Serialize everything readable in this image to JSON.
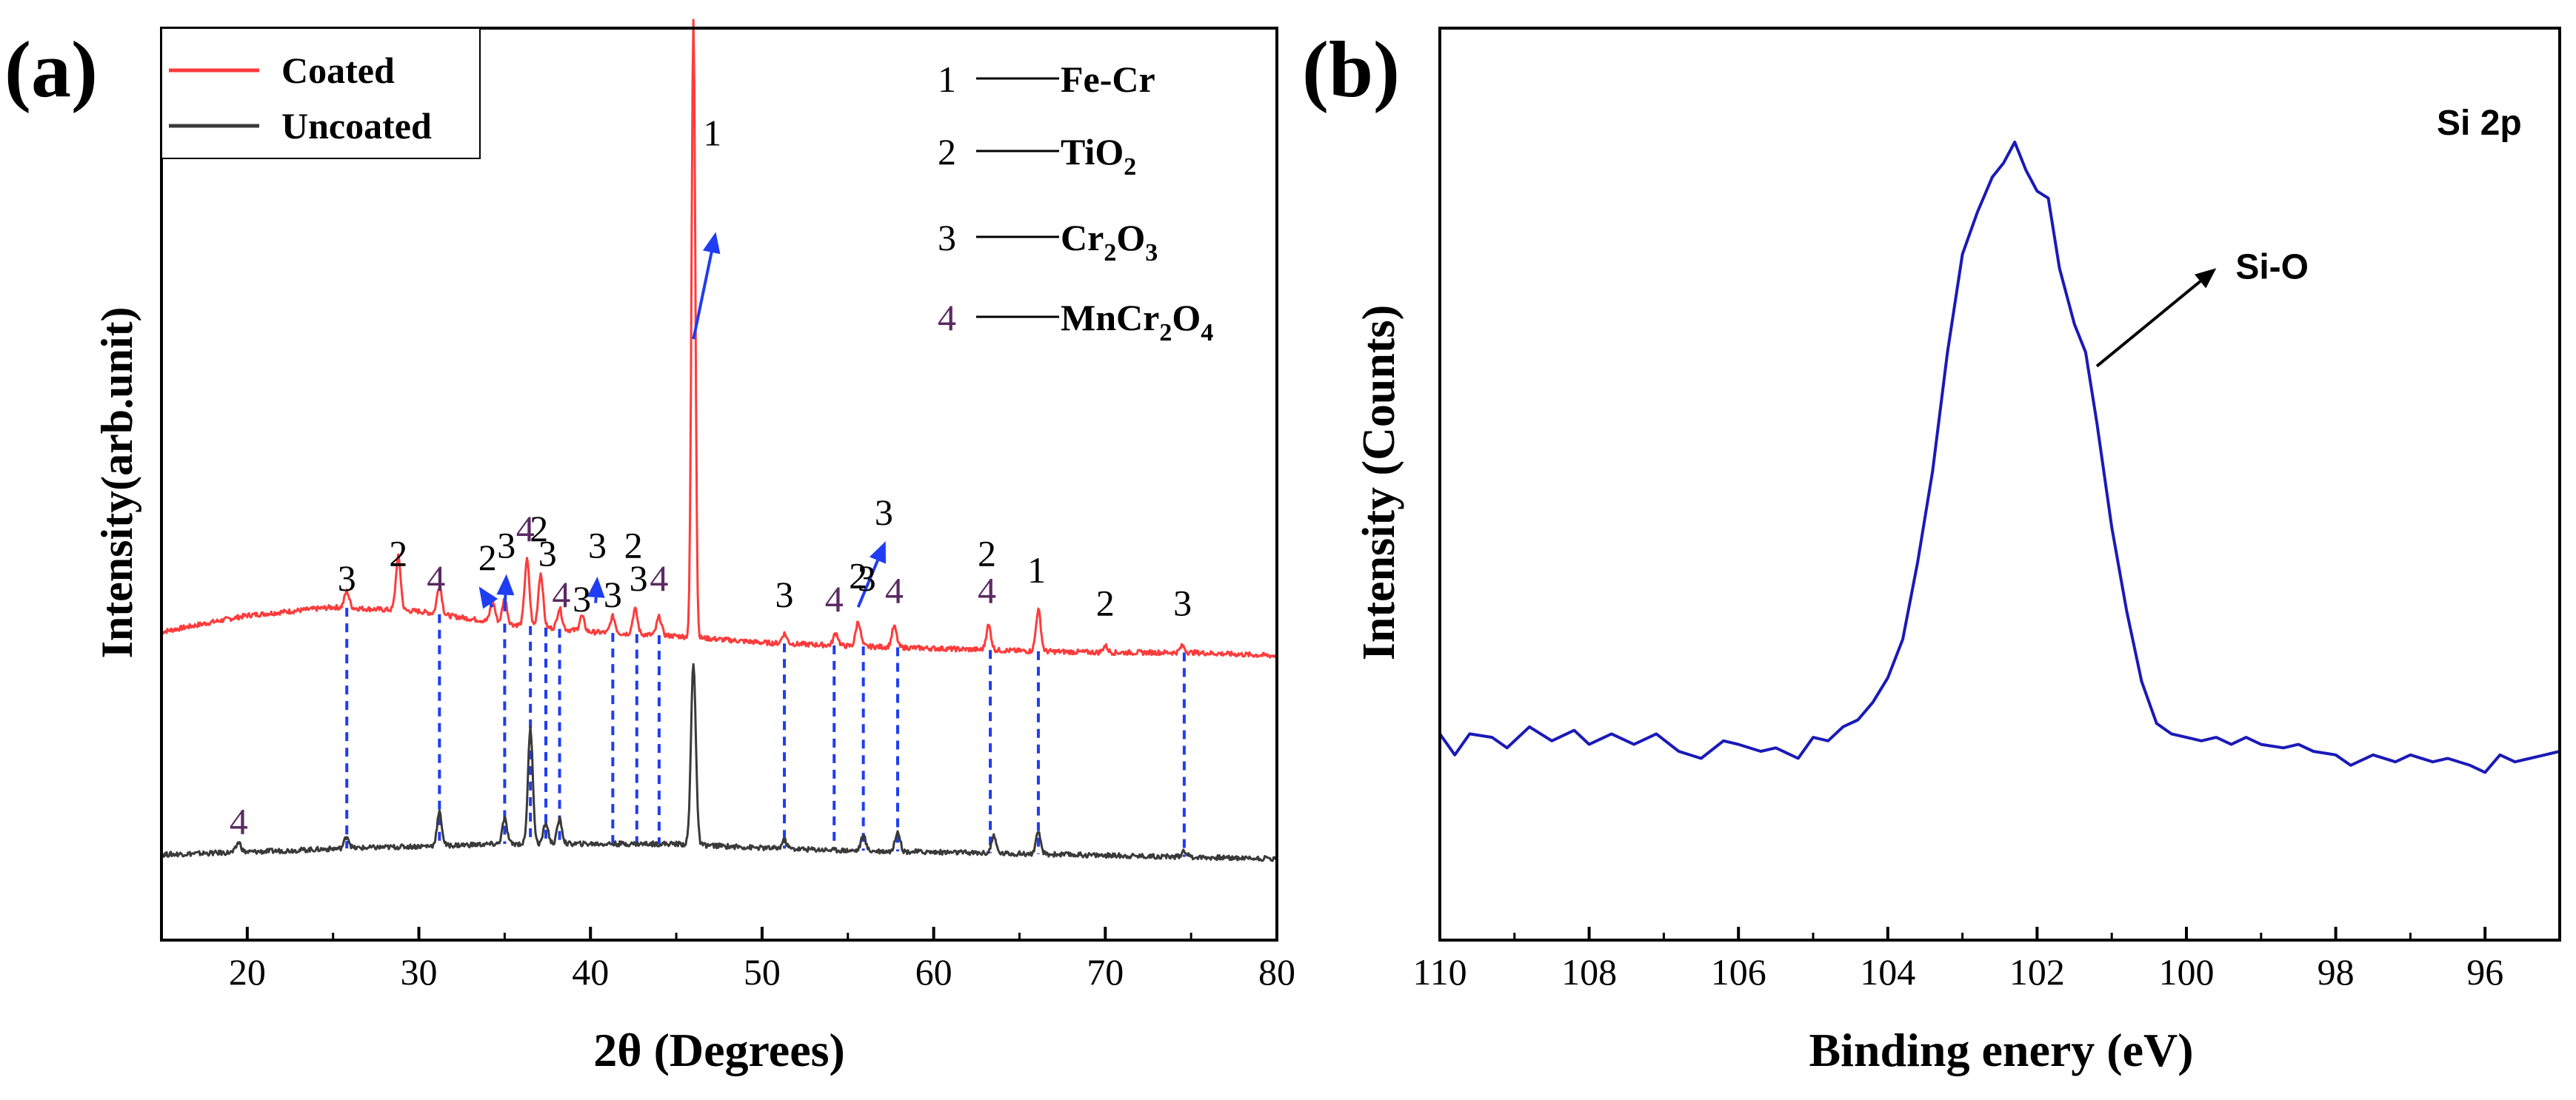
{
  "chart_data": [
    {
      "type": "line",
      "panel_label": "(a)",
      "title": "",
      "xlabel": "2θ (Degrees)",
      "ylabel": "Intensity(arb.unit)",
      "xlim": [
        15,
        80
      ],
      "x_ticks": [
        20,
        30,
        40,
        50,
        60,
        70,
        80
      ],
      "x_tick_labels": [
        "20",
        "30",
        "40",
        "50",
        "60",
        "70",
        "80"
      ],
      "y_ticks_shown": false,
      "legend": {
        "position": "top-left",
        "entries": [
          "Coated",
          "Uncoated"
        ]
      },
      "phase_key": [
        {
          "num": "1",
          "main": "Fe-Cr",
          "sub": []
        },
        {
          "num": "2",
          "main": "TiO",
          "sub": [
            "2"
          ]
        },
        {
          "num": "3",
          "main": "Cr",
          "sub": [
            "2",
            "O",
            "3"
          ]
        },
        {
          "num": "4",
          "main": "MnCr",
          "sub": [
            "2",
            "O",
            "4"
          ]
        }
      ],
      "series": [
        {
          "name": "Coated",
          "color": "#ff3b3b",
          "baseline": [
            [
              15,
              0.275
            ],
            [
              20,
              0.295
            ],
            [
              25,
              0.305
            ],
            [
              30,
              0.3
            ],
            [
              35,
              0.285
            ],
            [
              40,
              0.275
            ],
            [
              45,
              0.27
            ],
            [
              50,
              0.262
            ],
            [
              55,
              0.258
            ],
            [
              60,
              0.255
            ],
            [
              65,
              0.252
            ],
            [
              70,
              0.25
            ],
            [
              75,
              0.25
            ],
            [
              80,
              0.246
            ]
          ],
          "peaks": [
            {
              "x": 25.8,
              "h": 0.02
            },
            {
              "x": 28.8,
              "h": 0.065
            },
            {
              "x": 31.2,
              "h": 0.035
            },
            {
              "x": 34.3,
              "h": 0.025
            },
            {
              "x": 35.0,
              "h": 0.03
            },
            {
              "x": 36.3,
              "h": 0.08
            },
            {
              "x": 37.1,
              "h": 0.065
            },
            {
              "x": 38.2,
              "h": 0.025
            },
            {
              "x": 39.5,
              "h": 0.018
            },
            {
              "x": 41.3,
              "h": 0.02
            },
            {
              "x": 42.6,
              "h": 0.03
            },
            {
              "x": 44.0,
              "h": 0.022
            },
            {
              "x": 46.0,
              "h": 0.75
            },
            {
              "x": 51.3,
              "h": 0.012
            },
            {
              "x": 54.3,
              "h": 0.015
            },
            {
              "x": 55.6,
              "h": 0.03
            },
            {
              "x": 57.7,
              "h": 0.025
            },
            {
              "x": 63.2,
              "h": 0.03
            },
            {
              "x": 66.1,
              "h": 0.05
            },
            {
              "x": 70.0,
              "h": 0.008
            },
            {
              "x": 74.5,
              "h": 0.008
            }
          ]
        },
        {
          "name": "Uncoated",
          "color": "#3a3a3a",
          "baseline": [
            [
              15,
              0.005
            ],
            [
              20,
              0.008
            ],
            [
              25,
              0.012
            ],
            [
              30,
              0.015
            ],
            [
              35,
              0.018
            ],
            [
              40,
              0.018
            ],
            [
              45,
              0.018
            ],
            [
              50,
              0.013
            ],
            [
              55,
              0.01
            ],
            [
              60,
              0.008
            ],
            [
              65,
              0.006
            ],
            [
              70,
              0.004
            ],
            [
              75,
              0.002
            ],
            [
              80,
              0.0
            ]
          ],
          "peaks": [
            {
              "x": 19.5,
              "h": 0.012
            },
            {
              "x": 25.8,
              "h": 0.015
            },
            {
              "x": 31.2,
              "h": 0.04
            },
            {
              "x": 35.0,
              "h": 0.03
            },
            {
              "x": 36.5,
              "h": 0.14
            },
            {
              "x": 37.4,
              "h": 0.025
            },
            {
              "x": 38.2,
              "h": 0.03
            },
            {
              "x": 46.0,
              "h": 0.22
            },
            {
              "x": 51.3,
              "h": 0.01
            },
            {
              "x": 55.9,
              "h": 0.018
            },
            {
              "x": 57.9,
              "h": 0.025
            },
            {
              "x": 63.5,
              "h": 0.02
            },
            {
              "x": 66.1,
              "h": 0.025
            },
            {
              "x": 74.6,
              "h": 0.008
            }
          ]
        }
      ],
      "reference_lines_x": [
        25.8,
        31.2,
        35.0,
        36.5,
        37.4,
        38.2,
        41.3,
        42.7,
        44.0,
        51.3,
        54.2,
        55.9,
        57.9,
        63.3,
        66.1,
        74.6
      ],
      "peak_labels": [
        {
          "x": 25.8,
          "y": 0.325,
          "text": "3"
        },
        {
          "x": 28.8,
          "y": 0.355,
          "text": "2"
        },
        {
          "x": 31.0,
          "y": 0.325,
          "text": "4"
        },
        {
          "x": 34.0,
          "y": 0.35,
          "text": "2"
        },
        {
          "x": 35.1,
          "y": 0.365,
          "text": "3"
        },
        {
          "x": 36.2,
          "y": 0.385,
          "text": "4"
        },
        {
          "x": 37.0,
          "y": 0.385,
          "text": "2"
        },
        {
          "x": 37.5,
          "y": 0.355,
          "text": "3"
        },
        {
          "x": 38.3,
          "y": 0.305,
          "text": "4"
        },
        {
          "x": 39.5,
          "y": 0.3,
          "text": "3"
        },
        {
          "x": 40.4,
          "y": 0.365,
          "text": "3"
        },
        {
          "x": 41.3,
          "y": 0.305,
          "text": "3"
        },
        {
          "x": 42.5,
          "y": 0.365,
          "text": "2"
        },
        {
          "x": 42.8,
          "y": 0.325,
          "text": "3"
        },
        {
          "x": 44.0,
          "y": 0.325,
          "text": "4"
        },
        {
          "x": 47.1,
          "y": 0.865,
          "text": "1"
        },
        {
          "x": 51.3,
          "y": 0.305,
          "text": "3"
        },
        {
          "x": 54.2,
          "y": 0.3,
          "text": "4"
        },
        {
          "x": 55.6,
          "y": 0.328,
          "text": "2"
        },
        {
          "x": 56.1,
          "y": 0.325,
          "text": "3"
        },
        {
          "x": 57.7,
          "y": 0.31,
          "text": "4"
        },
        {
          "x": 57.1,
          "y": 0.405,
          "text": "3"
        },
        {
          "x": 63.1,
          "y": 0.355,
          "text": "2"
        },
        {
          "x": 63.1,
          "y": 0.31,
          "text": "4"
        },
        {
          "x": 66.0,
          "y": 0.335,
          "text": "1"
        },
        {
          "x": 70.0,
          "y": 0.295,
          "text": "2"
        },
        {
          "x": 74.5,
          "y": 0.295,
          "text": "3"
        },
        {
          "x": 19.5,
          "y": 0.03,
          "text": "4"
        }
      ],
      "arrows": [
        {
          "from": [
            46.0,
            0.63
          ],
          "to": [
            47.3,
            0.76
          ]
        },
        {
          "from": [
            34.3,
            0.305
          ],
          "to": [
            33.5,
            0.33
          ]
        },
        {
          "from": [
            35.0,
            0.3
          ],
          "to": [
            35.1,
            0.345
          ]
        },
        {
          "from": [
            40.3,
            0.31
          ],
          "to": [
            40.4,
            0.342
          ]
        },
        {
          "from": [
            55.6,
            0.305
          ],
          "to": [
            57.2,
            0.385
          ]
        }
      ]
    },
    {
      "type": "line",
      "panel_label": "(b)",
      "title": "Si 2p",
      "xlabel": "Binding enery (eV)",
      "ylabel": "Intensity (Counts)",
      "xlim": [
        110,
        95
      ],
      "x_ticks": [
        110,
        108,
        106,
        104,
        102,
        100,
        98,
        96
      ],
      "x_tick_labels": [
        "110",
        "108",
        "106",
        "104",
        "102",
        "100",
        "98",
        "96"
      ],
      "y_ticks_shown": false,
      "series": [
        {
          "name": "Si 2p",
          "color": "#1a1ab8",
          "points": [
            [
              110.0,
              0.155
            ],
            [
              109.8,
              0.125
            ],
            [
              109.6,
              0.155
            ],
            [
              109.3,
              0.15
            ],
            [
              109.1,
              0.135
            ],
            [
              108.8,
              0.165
            ],
            [
              108.5,
              0.145
            ],
            [
              108.2,
              0.16
            ],
            [
              108.0,
              0.14
            ],
            [
              107.7,
              0.155
            ],
            [
              107.4,
              0.14
            ],
            [
              107.1,
              0.155
            ],
            [
              106.8,
              0.13
            ],
            [
              106.5,
              0.12
            ],
            [
              106.2,
              0.145
            ],
            [
              106.0,
              0.14
            ],
            [
              105.7,
              0.13
            ],
            [
              105.5,
              0.135
            ],
            [
              105.2,
              0.12
            ],
            [
              105.0,
              0.15
            ],
            [
              104.8,
              0.145
            ],
            [
              104.6,
              0.165
            ],
            [
              104.4,
              0.175
            ],
            [
              104.2,
              0.2
            ],
            [
              104.0,
              0.235
            ],
            [
              103.8,
              0.29
            ],
            [
              103.6,
              0.4
            ],
            [
              103.4,
              0.53
            ],
            [
              103.2,
              0.7
            ],
            [
              103.0,
              0.84
            ],
            [
              102.8,
              0.9
            ],
            [
              102.6,
              0.95
            ],
            [
              102.45,
              0.97
            ],
            [
              102.3,
              1.0
            ],
            [
              102.15,
              0.96
            ],
            [
              102.0,
              0.93
            ],
            [
              101.85,
              0.92
            ],
            [
              101.7,
              0.82
            ],
            [
              101.5,
              0.74
            ],
            [
              101.35,
              0.7
            ],
            [
              101.2,
              0.6
            ],
            [
              101.0,
              0.45
            ],
            [
              100.8,
              0.33
            ],
            [
              100.6,
              0.23
            ],
            [
              100.4,
              0.17
            ],
            [
              100.2,
              0.155
            ],
            [
              100.0,
              0.15
            ],
            [
              99.8,
              0.145
            ],
            [
              99.6,
              0.15
            ],
            [
              99.4,
              0.14
            ],
            [
              99.2,
              0.15
            ],
            [
              99.0,
              0.14
            ],
            [
              98.7,
              0.135
            ],
            [
              98.5,
              0.14
            ],
            [
              98.3,
              0.13
            ],
            [
              98.0,
              0.125
            ],
            [
              97.8,
              0.11
            ],
            [
              97.5,
              0.125
            ],
            [
              97.2,
              0.115
            ],
            [
              97.0,
              0.125
            ],
            [
              96.7,
              0.115
            ],
            [
              96.5,
              0.12
            ],
            [
              96.2,
              0.11
            ],
            [
              96.0,
              0.1
            ],
            [
              95.8,
              0.125
            ],
            [
              95.6,
              0.115
            ],
            [
              95.4,
              0.12
            ],
            [
              95.2,
              0.125
            ],
            [
              95.0,
              0.13
            ]
          ]
        }
      ],
      "annotation": {
        "text": "Si-O",
        "arrow_from": [
          101.2,
          0.68
        ],
        "arrow_to": [
          99.6,
          0.82
        ]
      }
    }
  ]
}
